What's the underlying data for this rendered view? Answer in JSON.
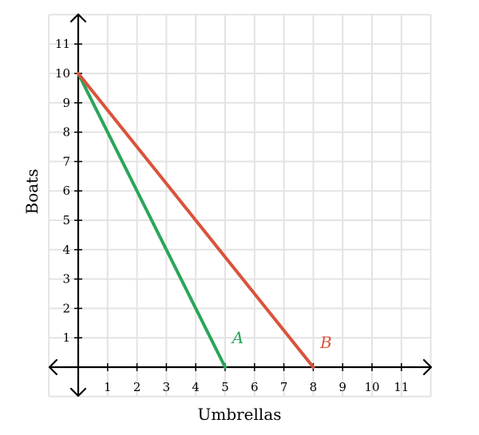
{
  "chart_data": {
    "type": "line",
    "title": "",
    "xlabel": "Umbrellas",
    "ylabel": "Boats",
    "xlim": [
      -1,
      12
    ],
    "ylim": [
      -1,
      12
    ],
    "x_ticks": [
      "1",
      "2",
      "3",
      "4",
      "5",
      "6",
      "7",
      "8",
      "9",
      "10",
      "11"
    ],
    "y_ticks": [
      "1",
      "2",
      "3",
      "4",
      "5",
      "6",
      "7",
      "8",
      "9",
      "10",
      "11"
    ],
    "grid": true,
    "legend": "none",
    "series": [
      {
        "name": "A",
        "color": "#2aa55a",
        "points": [
          [
            0,
            10
          ],
          [
            5,
            0
          ]
        ]
      },
      {
        "name": "B",
        "color": "#d9533b",
        "points": [
          [
            0,
            10
          ],
          [
            8,
            0
          ]
        ]
      }
    ]
  }
}
